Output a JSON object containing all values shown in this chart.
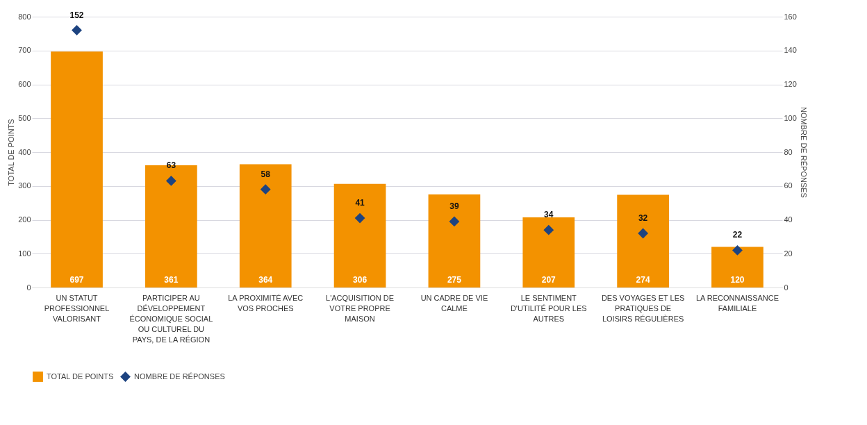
{
  "chart_data": {
    "type": "bar",
    "ylabel": "TOTAL DE POINTS",
    "y2label": "NOMBRE DE RÉPONSES",
    "categories": [
      "UN STATUT PROFESSIONNEL VALORISANT",
      "PARTICIPER AU DÉVELOPPEMENT ÉCONOMIQUE SOCIAL OU CULTUREL DU PAYS, DE LA RÉGION",
      "LA PROXIMITÉ AVEC VOS PROCHES",
      "L'ACQUISITION DE VOTRE PROPRE MAISON",
      "UN CADRE DE VIE CALME",
      "LE SENTIMENT D'UTILITÉ POUR LES AUTRES",
      "DES VOYAGES ET LES PRATIQUES DE LOISIRS RÉGULIÈRES",
      "LA RECONNAISSANCE FAMILIALE"
    ],
    "series": [
      {
        "name": "TOTAL DE POINTS",
        "color": "#f39200",
        "values": [
          697,
          361,
          364,
          306,
          275,
          207,
          274,
          120
        ]
      },
      {
        "name": "NOMBRE DE RÉPONSES",
        "type": "scatter",
        "axis": "y2",
        "color": "#1d4380",
        "values": [
          152,
          63,
          58,
          41,
          39,
          34,
          32,
          22
        ]
      }
    ],
    "ylim": [
      0,
      800
    ],
    "yticks": [
      0,
      100,
      200,
      300,
      400,
      500,
      600,
      700,
      800
    ],
    "y2lim": [
      0,
      160
    ],
    "y2ticks": [
      0,
      20,
      40,
      60,
      80,
      100,
      120,
      140,
      160
    ],
    "data_labels": true,
    "grid": "y",
    "legend": "bottom",
    "marker": "diamond"
  }
}
